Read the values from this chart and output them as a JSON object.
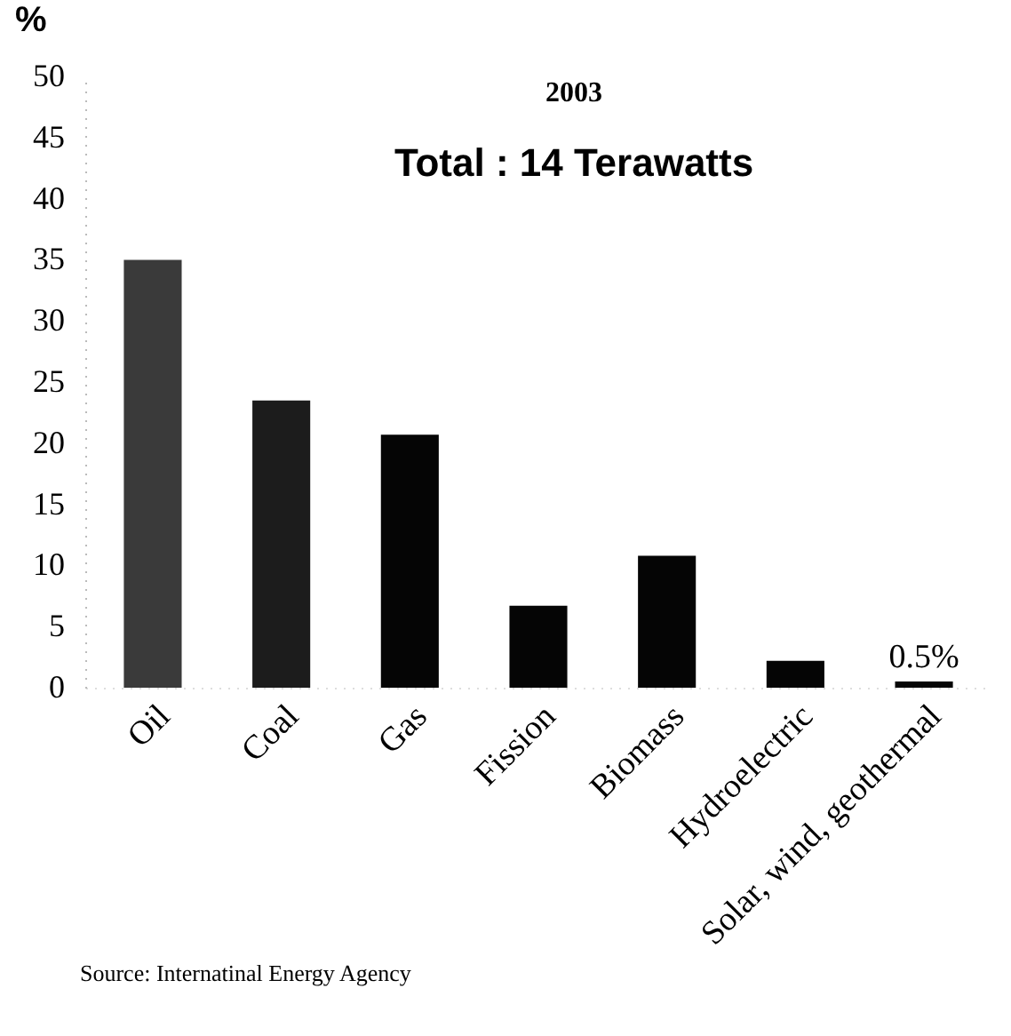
{
  "chart_data": {
    "type": "bar",
    "title": "2003",
    "subtitle": "Total : 14 Terawatts",
    "ylabel": "%",
    "categories": [
      "Oil",
      "Coal",
      "Gas",
      "Fission",
      "Biomass",
      "Hydroelectric",
      "Solar, wind, geothermal"
    ],
    "values": [
      35,
      23.5,
      20.7,
      6.7,
      10.8,
      2.2,
      0.5
    ],
    "colors": [
      "#3a3a3a",
      "#1c1c1c",
      "#050505",
      "#050505",
      "#050505",
      "#050505",
      "#050505"
    ],
    "value_labels": [
      null,
      null,
      null,
      null,
      null,
      null,
      "0.5%"
    ],
    "ylim": [
      0,
      50
    ],
    "yticks": [
      0,
      5,
      10,
      15,
      20,
      25,
      30,
      35,
      40,
      45,
      50
    ],
    "grid": false,
    "legend": false,
    "annotations": [
      "Source: Internatinal Energy Agency"
    ]
  }
}
